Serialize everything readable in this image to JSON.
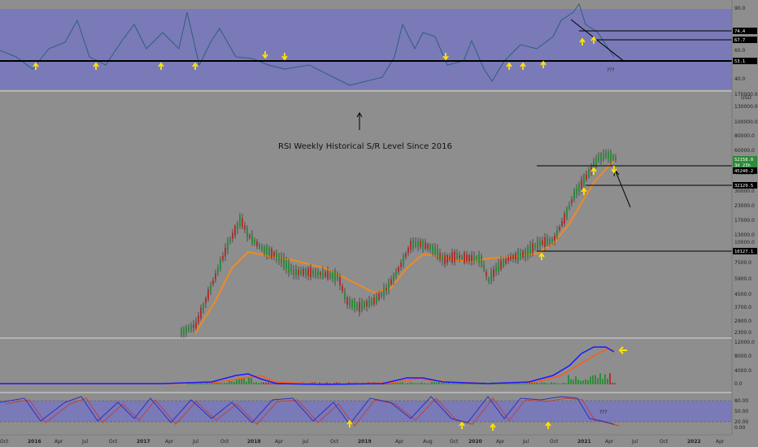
{
  "chart_data": [
    {
      "type": "line",
      "panel": "rsi",
      "yticks": [
        "90.0",
        "60.0",
        "40.0"
      ],
      "levels": [
        "74.4",
        "67.7",
        "53.1"
      ],
      "annotation": "???",
      "colors": {
        "band": "#7a7ab8",
        "line": "#2e5f7a"
      }
    },
    {
      "type": "candlestick",
      "panel": "price",
      "annotation": "RSI Weekly Historical S/R Level Since 2016",
      "yticks": [
        "170000.0",
        "130000.0",
        "100000.0",
        "80000.0",
        "60000.0",
        "50000.0",
        "40000.0",
        "30000.0",
        "23000.0",
        "17000.0",
        "13000.0",
        "10000.0",
        "7500.0",
        "5900.0",
        "4500.0",
        "3700.0",
        "2900.0",
        "2300.0"
      ],
      "unit": "USD",
      "current_price": "52158.0",
      "current_label": "3d 23h",
      "levels": [
        "45240.2",
        "32129.5",
        "10127.1"
      ],
      "colors": {
        "up": "#2e8b3a",
        "down": "#b03030",
        "ma": "#f08a20"
      }
    },
    {
      "type": "line",
      "panel": "macd",
      "yticks": [
        "12000.0",
        "8000.0",
        "4000.0",
        "0.0"
      ],
      "colors": {
        "macd": "#1a1aff",
        "signal": "#ff5a1a",
        "hist": "#2e8b3a"
      }
    },
    {
      "type": "line",
      "panel": "stoch",
      "yticks": [
        "80.00",
        "50.00",
        "20.00",
        "0.00"
      ],
      "annotation": "???",
      "colors": {
        "band": "#7a7ab8",
        "k": "#3030c0",
        "d": "#c04040"
      }
    }
  ],
  "time_axis": [
    "Oct",
    "2016",
    "Apr",
    "Jul",
    "Oct",
    "2017",
    "Apr",
    "Jul",
    "Oct",
    "2018",
    "Apr",
    "Jul",
    "Oct",
    "2019",
    "Apr",
    "Aug",
    "Oct",
    "2020",
    "Apr",
    "Jul",
    "Oct",
    "2021",
    "Apr",
    "Jul",
    "Oct",
    "2022",
    "Apr"
  ]
}
